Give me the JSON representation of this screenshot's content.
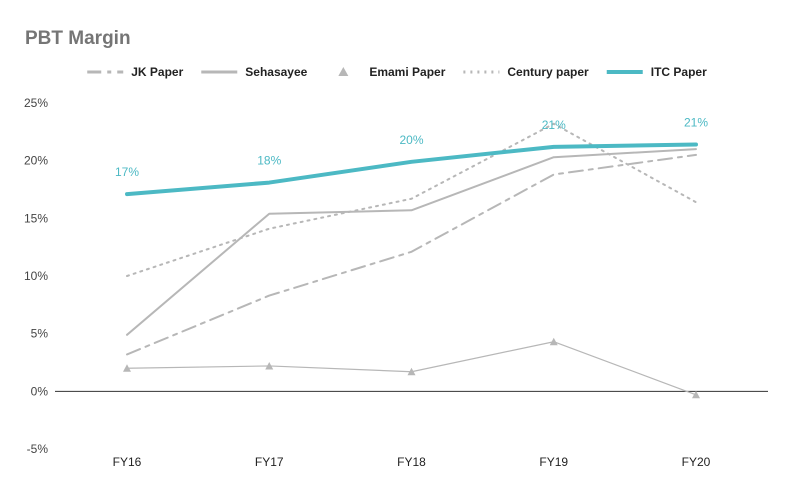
{
  "chart_data": {
    "type": "line",
    "title": "PBT Margin",
    "categories": [
      "FY16",
      "FY17",
      "FY18",
      "FY19",
      "FY20"
    ],
    "ylim": [
      -5,
      25
    ],
    "yticks": [
      -5,
      0,
      5,
      10,
      15,
      20,
      25
    ],
    "ytick_labels": [
      "-5%",
      "0%",
      "5%",
      "10%",
      "15%",
      "20%",
      "25%"
    ],
    "grid": false,
    "legend_position": "top",
    "series": [
      {
        "name": "JK Paper",
        "values": [
          3.2,
          8.3,
          12.1,
          18.8,
          20.5
        ],
        "color": "#b7b7b7",
        "style": "dashdot",
        "marker": "none"
      },
      {
        "name": "Sehasayee",
        "values": [
          4.9,
          15.4,
          15.7,
          20.3,
          21.0
        ],
        "color": "#b7b7b7",
        "style": "solid",
        "marker": "none"
      },
      {
        "name": "Emami Paper",
        "values": [
          2.0,
          2.2,
          1.7,
          4.3,
          -0.3
        ],
        "color": "#b7b7b7",
        "style": "solid",
        "marker": "triangle"
      },
      {
        "name": "Century paper",
        "values": [
          10.0,
          14.1,
          16.7,
          23.2,
          16.4
        ],
        "color": "#b7b7b7",
        "style": "dotted",
        "marker": "none"
      },
      {
        "name": "ITC Paper",
        "values": [
          17.1,
          18.1,
          19.9,
          21.2,
          21.4
        ],
        "labels": [
          "17%",
          "18%",
          "20%",
          "21%",
          "21%"
        ],
        "color": "#4cb9c4",
        "style": "solid",
        "marker": "none"
      }
    ]
  }
}
